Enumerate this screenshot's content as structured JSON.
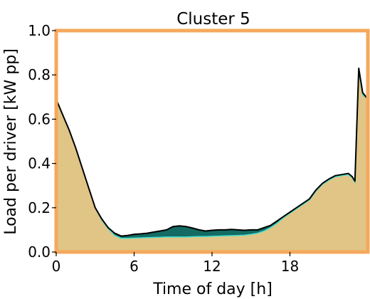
{
  "chart_data": {
    "type": "area",
    "title": "Cluster 5",
    "xlabel": "Time of day [h]",
    "ylabel": "Load per driver [kW pp]",
    "xlim": [
      0,
      24
    ],
    "ylim": [
      0,
      1.0
    ],
    "xticks": [
      0,
      6,
      12,
      18
    ],
    "xtick_labels": [
      "0",
      "6",
      "12",
      "18"
    ],
    "yticks": [
      0.0,
      0.2,
      0.4,
      0.6,
      0.8,
      1.0
    ],
    "ytick_labels": [
      "0.0",
      "0.2",
      "0.4",
      "0.6",
      "0.8",
      "1.0"
    ],
    "grid": false,
    "legend": "none",
    "frame_color": "#f5a85c",
    "colors": {
      "fill": "#e0c586",
      "band": "#146b64",
      "band_edge": "#40e0d0",
      "line": "#000000"
    },
    "x": [
      0,
      0.5,
      1,
      1.5,
      2,
      2.5,
      3,
      3.5,
      4,
      4.5,
      5,
      5.5,
      6,
      6.5,
      7,
      7.5,
      8,
      8.5,
      9,
      9.5,
      10,
      10.5,
      11,
      11.5,
      12,
      12.5,
      13,
      13.5,
      14,
      14.5,
      15,
      15.5,
      16,
      16.5,
      17,
      17.5,
      18,
      18.5,
      19,
      19.5,
      20,
      20.5,
      21,
      21.5,
      22,
      22.5,
      22.8,
      23,
      23.3,
      23.6,
      24
    ],
    "series": [
      {
        "values": [
          0.69,
          0.62,
          0.55,
          0.47,
          0.38,
          0.29,
          0.2,
          0.15,
          0.11,
          0.085,
          0.072,
          0.075,
          0.08,
          0.082,
          0.085,
          0.09,
          0.095,
          0.1,
          0.115,
          0.118,
          0.115,
          0.108,
          0.1,
          0.095,
          0.098,
          0.1,
          0.1,
          0.102,
          0.1,
          0.098,
          0.1,
          0.1,
          0.11,
          0.12,
          0.14,
          0.16,
          0.18,
          0.2,
          0.22,
          0.24,
          0.28,
          0.31,
          0.33,
          0.345,
          0.35,
          0.355,
          0.34,
          0.32,
          0.83,
          0.72,
          0.69
        ]
      },
      {
        "values": [
          0.69,
          0.62,
          0.55,
          0.47,
          0.38,
          0.29,
          0.2,
          0.145,
          0.105,
          0.075,
          0.062,
          0.062,
          0.063,
          0.064,
          0.065,
          0.066,
          0.067,
          0.068,
          0.068,
          0.068,
          0.068,
          0.069,
          0.07,
          0.07,
          0.071,
          0.072,
          0.073,
          0.074,
          0.075,
          0.076,
          0.08,
          0.085,
          0.095,
          0.11,
          0.13,
          0.155,
          0.175,
          0.195,
          0.215,
          0.235,
          0.275,
          0.305,
          0.325,
          0.34,
          0.345,
          0.35,
          0.335,
          0.315,
          0.82,
          0.71,
          0.69
        ]
      }
    ]
  }
}
